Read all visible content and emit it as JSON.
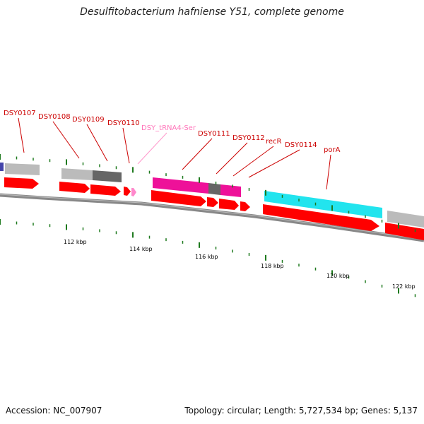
{
  "title": "Desulfitobacterium hafniense Y51, complete genome",
  "footer": {
    "accession": "Accession: NC_007907",
    "summary": "Topology: circular; Length: 5,727,534 bp; Genes: 5,137"
  },
  "colors": {
    "label_red": "#cc0000",
    "label_pink": "#ff77bb",
    "gene_red": "#ff0000",
    "backbone": "#888888",
    "tick_green": "#1f7a1f",
    "cds_magenta": "#ee1199",
    "cds_cyan": "#22e4ee",
    "cds_gray": "#bbbbbb",
    "cds_darkgray": "#666666",
    "cds_blue": "#4444aa",
    "trna_pink": "#ff88cc"
  },
  "gene_labels": [
    {
      "text": "DSY0107",
      "type": "cds"
    },
    {
      "text": "DSY0108",
      "type": "cds"
    },
    {
      "text": "DSY0109",
      "type": "cds"
    },
    {
      "text": "DSY0110",
      "type": "cds"
    },
    {
      "text": "DSY_tRNA4-Ser",
      "type": "trna"
    },
    {
      "text": "DSY0111",
      "type": "cds"
    },
    {
      "text": "DSY0112",
      "type": "cds"
    },
    {
      "text": "recR",
      "type": "cds"
    },
    {
      "text": "DSY0114",
      "type": "cds"
    },
    {
      "text": "porA",
      "type": "cds"
    }
  ],
  "scale_labels": [
    "112 kbp",
    "114 kbp",
    "116 kbp",
    "118 kbp",
    "120 kbp",
    "122 kbp"
  ]
}
